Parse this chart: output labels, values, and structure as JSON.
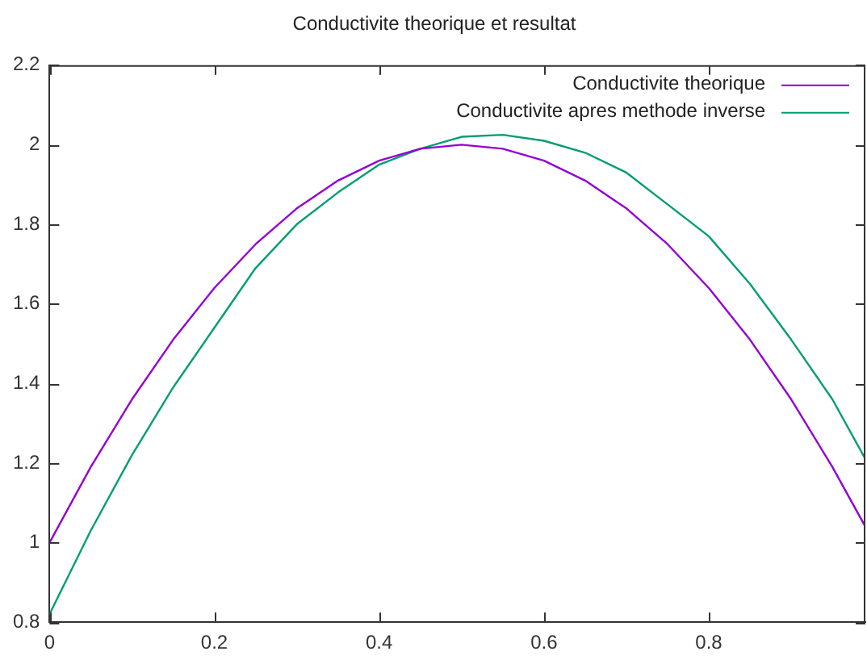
{
  "chart_data": {
    "type": "line",
    "title": "Conductivite theorique et resultat",
    "xlim": [
      0,
      0.99
    ],
    "xticks": [
      0,
      0.2,
      0.4,
      0.6,
      0.8
    ],
    "ylim": [
      0.8,
      2.2
    ],
    "yticks": [
      {
        "value": 0.8,
        "label": "0.8"
      },
      1,
      1.2,
      1.4,
      1.6,
      1.8,
      2,
      2.2
    ],
    "grid": false,
    "legend": "top right",
    "marker": "none",
    "line_style": "solid",
    "series": [
      {
        "name": "Conductivite theorique",
        "color": "#9400d3",
        "x": [
          0,
          0.05,
          0.1,
          0.15,
          0.2,
          0.25,
          0.3,
          0.35,
          0.4,
          0.45,
          0.5,
          0.55,
          0.6,
          0.65,
          0.7,
          0.75,
          0.8,
          0.85,
          0.9,
          0.95,
          0.99
        ],
        "values": [
          1,
          1.19,
          1.36,
          1.51,
          1.64,
          1.75,
          1.84,
          1.91,
          1.96,
          1.99,
          2,
          1.99,
          1.96,
          1.91,
          1.84,
          1.75,
          1.64,
          1.51,
          1.36,
          1.19,
          1.04
        ]
      },
      {
        "name": "Conductivite apres methode inverse",
        "color": "#009e73",
        "x": [
          0,
          0.05,
          0.1,
          0.15,
          0.2,
          0.25,
          0.3,
          0.35,
          0.4,
          0.45,
          0.5,
          0.55,
          0.6,
          0.65,
          0.7,
          0.75,
          0.8,
          0.85,
          0.9,
          0.95,
          0.99
        ],
        "values": [
          0.82,
          1.03,
          1.22,
          1.39,
          1.54,
          1.69,
          1.8,
          1.88,
          1.95,
          1.99,
          2.02,
          2.025,
          2.01,
          1.98,
          1.93,
          1.85,
          1.77,
          1.65,
          1.51,
          1.36,
          1.21
        ]
      }
    ]
  }
}
